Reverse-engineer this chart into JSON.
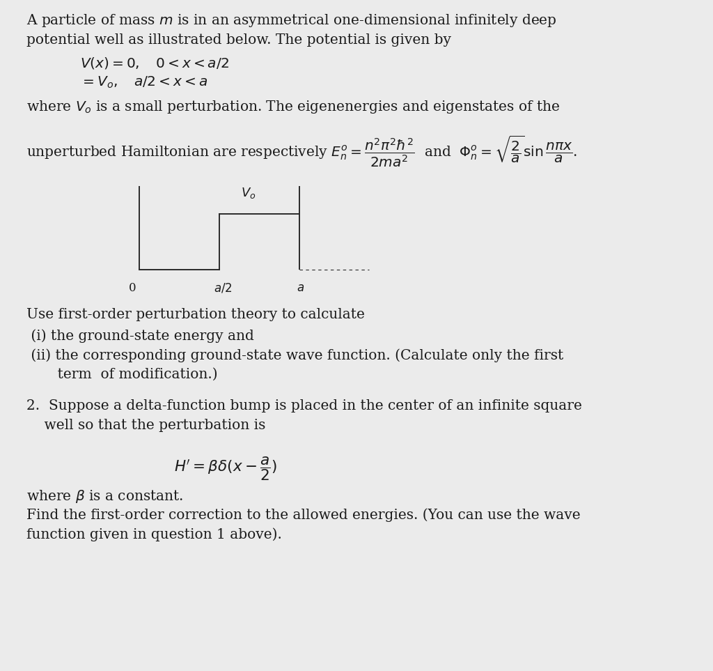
{
  "background_color": "#ebebeb",
  "text_color": "#1a1a1a",
  "fontsize": 14.5,
  "line1": "A particle of mass $m$ is in an asymmetrical one-dimensional infinitely deep",
  "line2": "potential well as illustrated below. The potential is given by",
  "line3_indent": 0.115,
  "line3": "$V(x) = 0, \\quad 0 < x < a/2$",
  "line4_indent": 0.115,
  "line4": "$= V_o, \\quad a/2 < x < a$",
  "line5": "where $V_o$ is a small perturbation. The eigenenergies and eigenstates of the",
  "line6": "unperturbed Hamiltonian are respectively $E_n^o = \\dfrac{n^2 \\pi^2 \\hbar^2}{2ma^2}$  and  $\\Phi_n^o = \\sqrt{\\dfrac{2}{a}} \\sin \\dfrac{n\\pi x}{a}$.",
  "line_use": "Use first-order perturbation theory to calculate",
  "line_i": " (i) the ground-state energy and",
  "line_ii": " (ii) the corresponding ground-state wave function. (Calculate only the first",
  "line_term": "       term  of modification.)",
  "line_2a": "2.  Suppose a delta-function bump is placed in the center of an infinite square",
  "line_2b": "    well so that the perturbation is",
  "line_hprime": "$H' = \\beta\\delta(x - \\dfrac{a}{2})$",
  "line_beta": "where $\\beta$ is a constant.",
  "line_find1": "Find the first-order correction to the allowed energies. (You can use the wave",
  "line_find2": "function given in question 1 above).",
  "diagram_line_color": "#2a2a2a",
  "diagram_lw": 1.4
}
